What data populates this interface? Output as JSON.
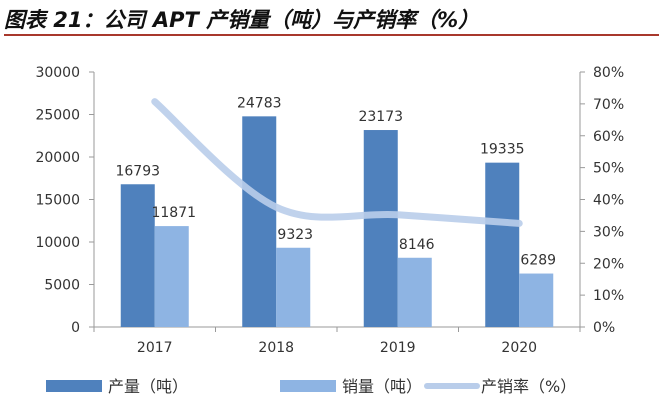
{
  "title": "图表 21：公司 APT 产销量（吨）与产销率（%）",
  "chart_data": {
    "type": "bar",
    "categories": [
      "2017",
      "2018",
      "2019",
      "2020"
    ],
    "series": [
      {
        "name": "产量（吨）",
        "kind": "bar",
        "axis": "left",
        "color": "#4f81bd",
        "values": [
          16793,
          24783,
          23173,
          19335
        ]
      },
      {
        "name": "销量（吨）",
        "kind": "bar",
        "axis": "left",
        "color": "#8eb4e3",
        "values": [
          11871,
          9323,
          8146,
          6289
        ]
      },
      {
        "name": "产销率（%）",
        "kind": "line",
        "axis": "right",
        "color": "#b9cdea",
        "values": [
          70.7,
          37.6,
          35.2,
          32.5
        ]
      }
    ],
    "left_axis": {
      "min": 0,
      "max": 30000,
      "ticks": [
        "0",
        "5000",
        "10000",
        "15000",
        "20000",
        "25000",
        "30000"
      ]
    },
    "right_axis": {
      "min": 0,
      "max": 80,
      "ticks": [
        "0%",
        "10%",
        "20%",
        "30%",
        "40%",
        "50%",
        "60%",
        "70%",
        "80%"
      ]
    },
    "legend_position": "bottom",
    "grid": false
  }
}
